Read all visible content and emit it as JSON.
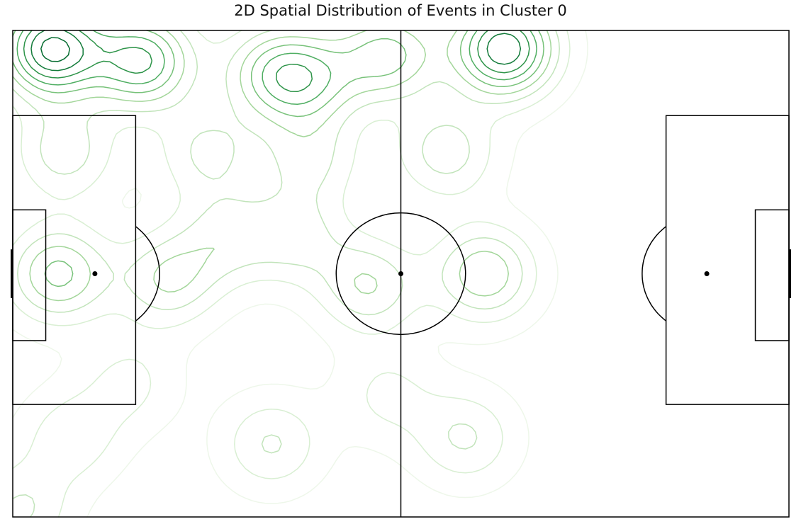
{
  "chart_data": {
    "type": "contour",
    "title": "2D Spatial Distribution of Events in Cluster 0",
    "xlabel": "",
    "ylabel": "",
    "xlim": [
      0,
      120
    ],
    "ylim": [
      0,
      80
    ],
    "grid": false,
    "legend": "none",
    "background": "football pitch",
    "colormap": "Greens",
    "line_color": "#000000",
    "spot_color": "#000000",
    "contour_colors": [
      "#eef7ea",
      "#d9efd3",
      "#c2e4bb",
      "#a3d69a",
      "#78c27a",
      "#4fae62",
      "#2e9449",
      "#137b3a",
      "#046b2f"
    ],
    "density_peaks": [
      {
        "x": 6,
        "y": 77,
        "weight": 1.0
      },
      {
        "x": 20,
        "y": 75,
        "weight": 0.75
      },
      {
        "x": 76,
        "y": 77,
        "weight": 0.95
      },
      {
        "x": 58,
        "y": 76,
        "weight": 0.55
      },
      {
        "x": 40,
        "y": 73,
        "weight": 0.45
      },
      {
        "x": 46,
        "y": 72,
        "weight": 0.45
      },
      {
        "x": 7,
        "y": 40,
        "weight": 0.55
      },
      {
        "x": 24,
        "y": 39,
        "weight": 0.4
      },
      {
        "x": 55,
        "y": 38,
        "weight": 0.4
      },
      {
        "x": 73,
        "y": 40,
        "weight": 0.5
      },
      {
        "x": 33,
        "y": 46,
        "weight": 0.3
      },
      {
        "x": 44,
        "y": 46,
        "weight": 0.3
      },
      {
        "x": 30,
        "y": 60,
        "weight": 0.3
      },
      {
        "x": 46,
        "y": 59,
        "weight": 0.3
      },
      {
        "x": 8,
        "y": 60,
        "weight": 0.35
      },
      {
        "x": 67,
        "y": 60,
        "weight": 0.35
      },
      {
        "x": 40,
        "y": 12,
        "weight": 0.3
      },
      {
        "x": 70,
        "y": 13,
        "weight": 0.3
      },
      {
        "x": 9,
        "y": 13,
        "weight": 0.25
      },
      {
        "x": 1,
        "y": 1,
        "weight": 0.3
      },
      {
        "x": 18,
        "y": 22,
        "weight": 0.2
      },
      {
        "x": 58,
        "y": 20,
        "weight": 0.2
      }
    ]
  }
}
